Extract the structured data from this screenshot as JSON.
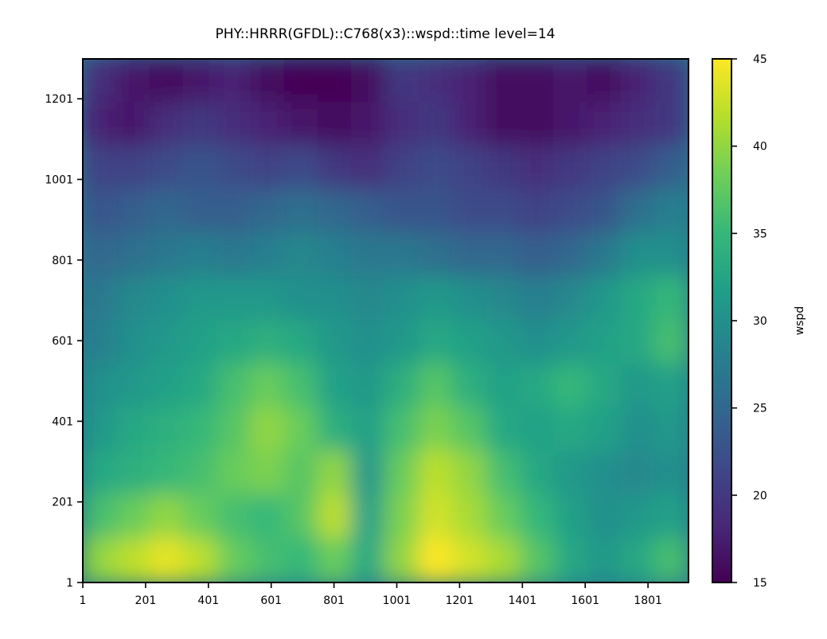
{
  "chart_data": {
    "type": "heatmap",
    "title": "PHY::HRRR(GFDL)::C768(x3)::wspd::time level=14",
    "xlabel": "",
    "ylabel": "",
    "xlim": [
      1,
      1930
    ],
    "ylim": [
      1,
      1300
    ],
    "x_ticks": [
      "1",
      "201",
      "401",
      "601",
      "801",
      "1001",
      "1201",
      "1401",
      "1601",
      "1801"
    ],
    "y_ticks": [
      "1",
      "201",
      "401",
      "601",
      "801",
      "1001",
      "1201"
    ],
    "colorbar": {
      "label": "wspd",
      "min": 15,
      "max": 45,
      "ticks": [
        "15",
        "20",
        "25",
        "30",
        "35",
        "40",
        "45"
      ],
      "colormap": "viridis",
      "colormap_stops": [
        "#440154",
        "#482878",
        "#3e4989",
        "#31688e",
        "#26828e",
        "#1f9e89",
        "#35b779",
        "#6ece58",
        "#b5de2b",
        "#fde725"
      ]
    },
    "field_summary": {
      "description_rows_top_to_bottom": "values in wspd",
      "grid_rows": [
        [
          19,
          17,
          16,
          17,
          18,
          16,
          15,
          15,
          16,
          20,
          19,
          18,
          16,
          16,
          17,
          16,
          18,
          20
        ],
        [
          18,
          17,
          19,
          20,
          19,
          18,
          17,
          16,
          17,
          19,
          20,
          18,
          16,
          16,
          17,
          18,
          19,
          20
        ],
        [
          21,
          21,
          22,
          23,
          22,
          21,
          22,
          20,
          19,
          21,
          22,
          21,
          20,
          19,
          20,
          21,
          22,
          24
        ],
        [
          23,
          24,
          25,
          24,
          24,
          25,
          26,
          25,
          24,
          23,
          23,
          22,
          22,
          21,
          22,
          23,
          26,
          28
        ],
        [
          25,
          26,
          27,
          28,
          27,
          28,
          29,
          28,
          27,
          27,
          26,
          25,
          25,
          24,
          25,
          27,
          30,
          30
        ],
        [
          27,
          29,
          30,
          31,
          31,
          31,
          30,
          30,
          29,
          30,
          31,
          30,
          29,
          28,
          29,
          31,
          33,
          35
        ],
        [
          28,
          30,
          31,
          32,
          33,
          34,
          33,
          31,
          30,
          31,
          33,
          32,
          31,
          30,
          31,
          32,
          33,
          36
        ],
        [
          30,
          31,
          32,
          33,
          36,
          38,
          36,
          32,
          31,
          34,
          37,
          34,
          32,
          33,
          35,
          33,
          31,
          32
        ],
        [
          31,
          33,
          34,
          35,
          37,
          40,
          38,
          34,
          32,
          36,
          39,
          37,
          33,
          32,
          33,
          32,
          30,
          31
        ],
        [
          33,
          34,
          35,
          36,
          38,
          39,
          37,
          40,
          31,
          38,
          42,
          40,
          36,
          33,
          31,
          30,
          29,
          30
        ],
        [
          36,
          38,
          40,
          38,
          36,
          35,
          37,
          42,
          32,
          39,
          43,
          41,
          38,
          35,
          32,
          30,
          31,
          32
        ],
        [
          40,
          42,
          44,
          42,
          38,
          36,
          35,
          38,
          33,
          40,
          45,
          43,
          41,
          37,
          33,
          31,
          33,
          36
        ]
      ]
    }
  }
}
